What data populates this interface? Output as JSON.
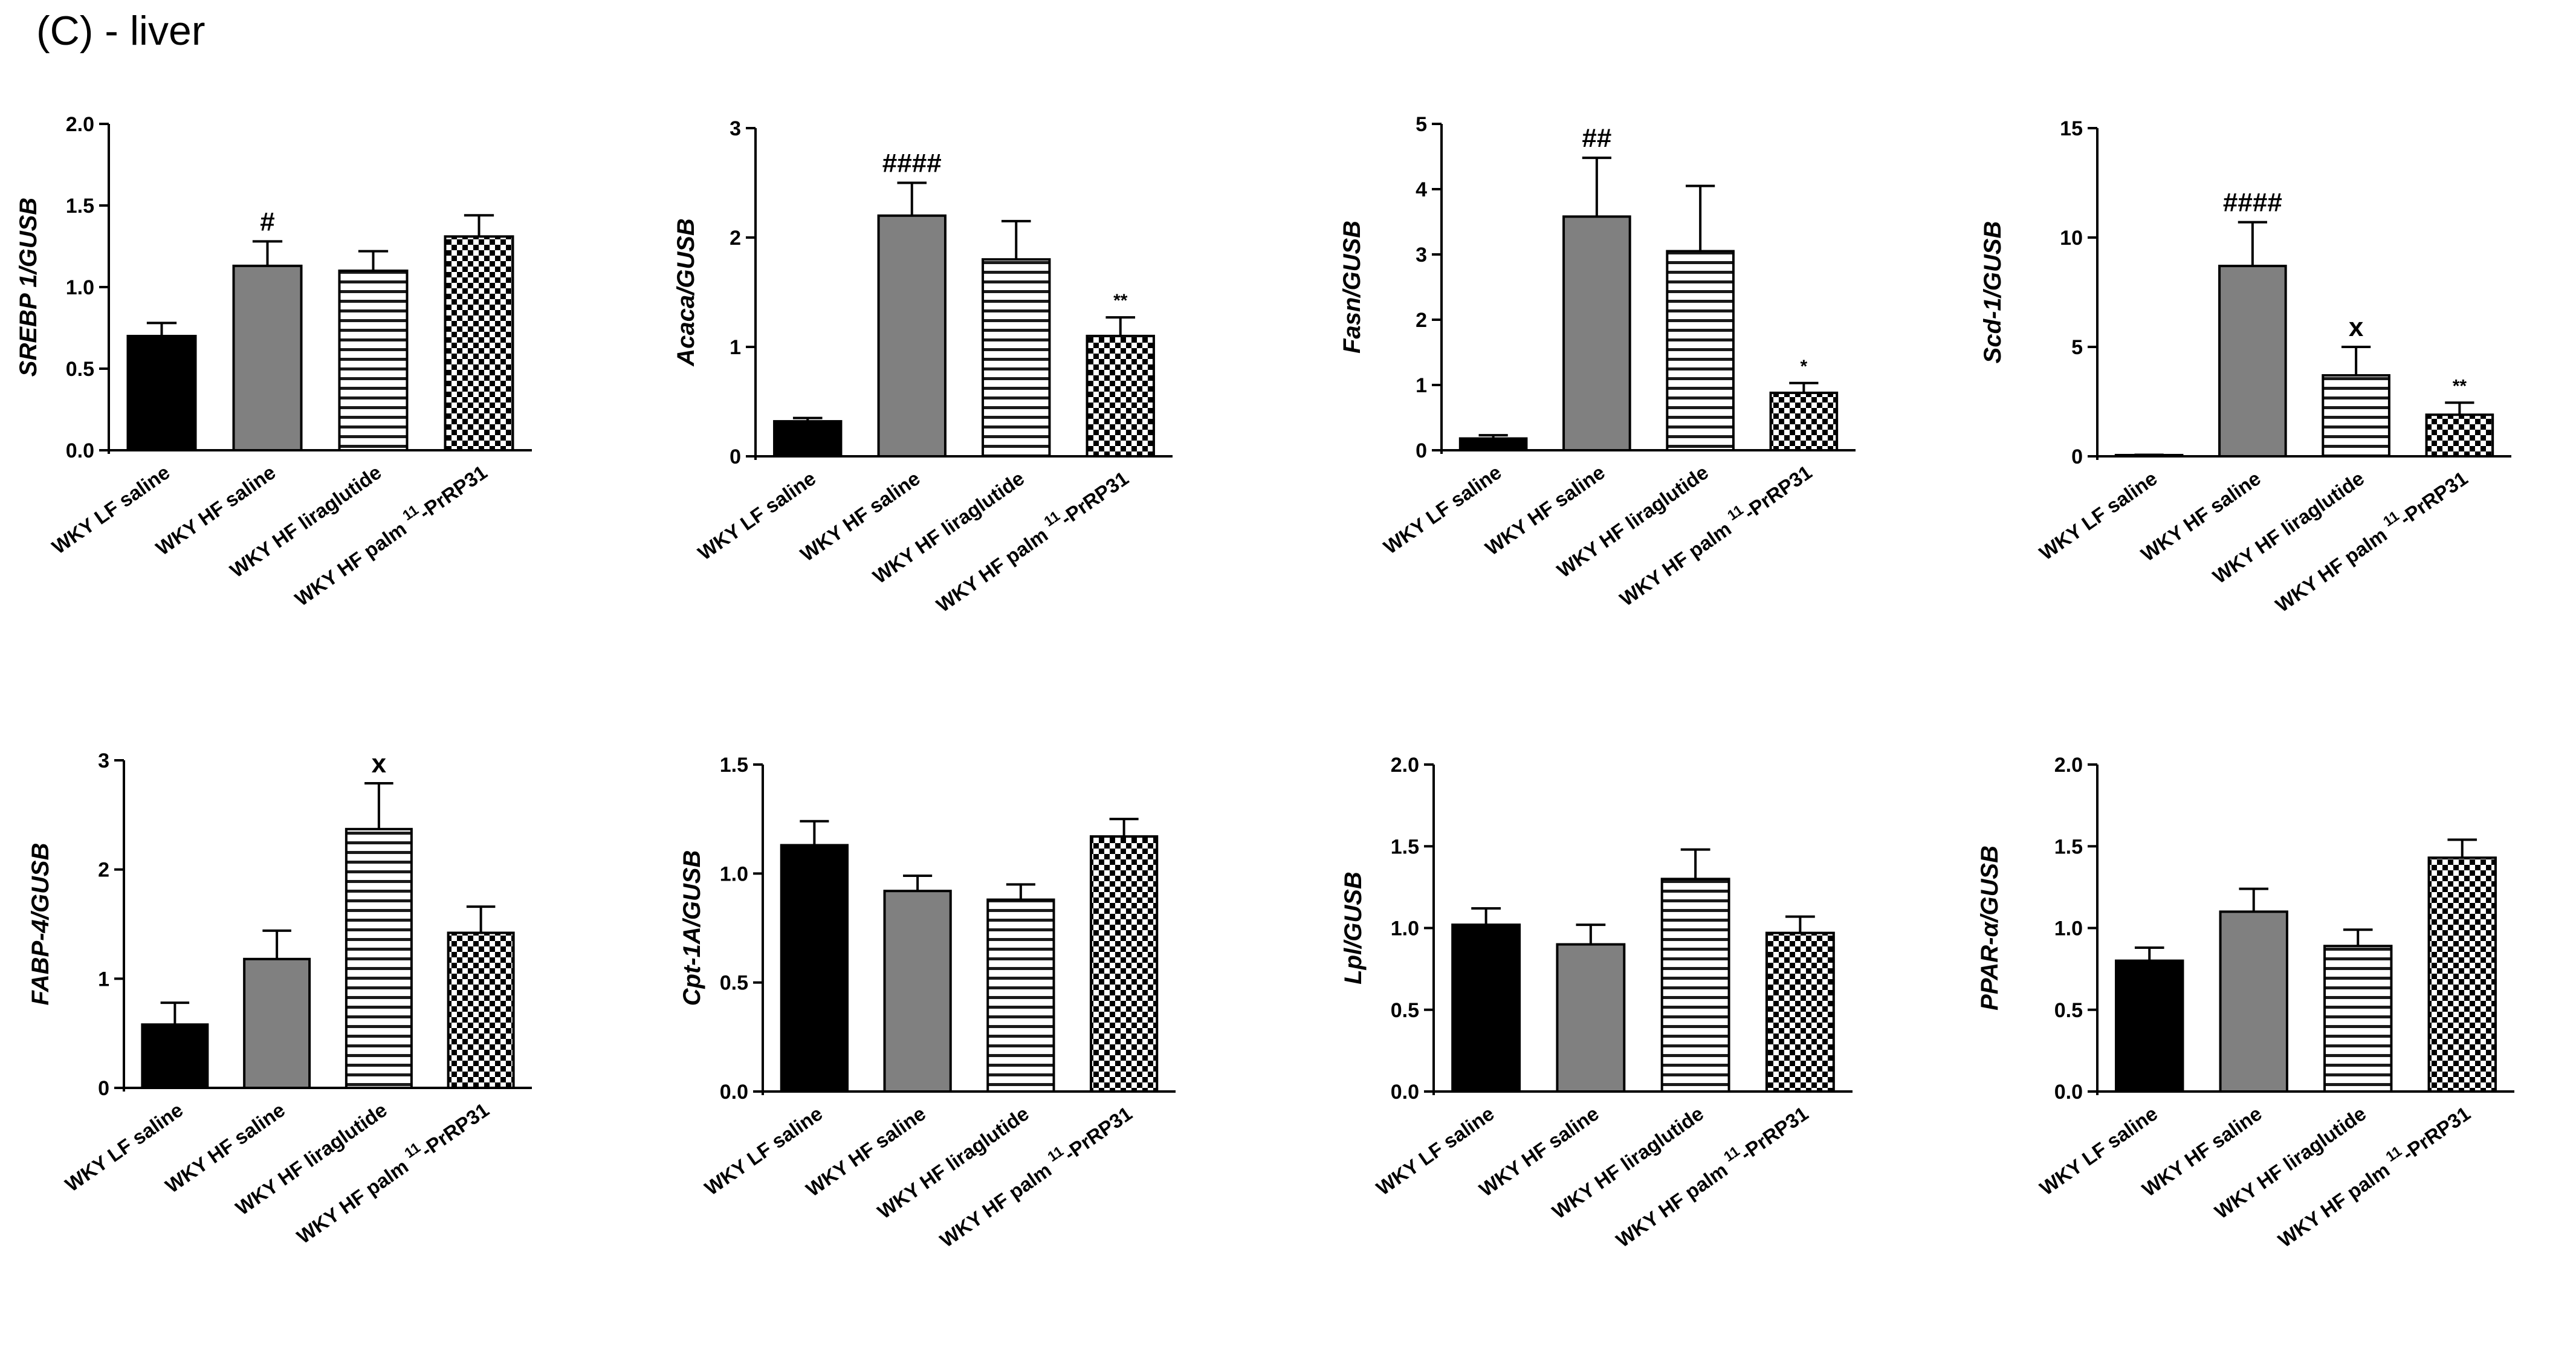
{
  "figure_title": "(C) - liver",
  "colors": {
    "lf_saline": "#000000",
    "hf_saline": "#808080",
    "axis": "#000000"
  },
  "fills": [
    "solid-black",
    "solid-gray",
    "horizontal-stripes",
    "checkerboard"
  ],
  "chart_data": [
    {
      "type": "bar",
      "title": "",
      "ylabel": "SREBP 1/GUSB",
      "xlabel": "",
      "categories": [
        "WKY LF saline",
        "WKY HF saline",
        "WKY HF liraglutide",
        "WKY HF palm11-PrRP31"
      ],
      "values": [
        0.7,
        1.13,
        1.1,
        1.31
      ],
      "errors": [
        0.08,
        0.15,
        0.12,
        0.13
      ],
      "annotations": [
        "",
        "#",
        "",
        ""
      ],
      "ylim": [
        0,
        2.0
      ],
      "yticks": [
        "0.0",
        "0.5",
        "1.0",
        "1.5",
        "2.0"
      ],
      "ytick_values": [
        0,
        0.5,
        1.0,
        1.5,
        2.0
      ]
    },
    {
      "type": "bar",
      "title": "",
      "ylabel": "Acaca/GUSB",
      "xlabel": "",
      "categories": [
        "WKY LF saline",
        "WKY HF saline",
        "WKY HF liraglutide",
        "WKY HF palm11-PrRP31"
      ],
      "values": [
        0.32,
        2.2,
        1.8,
        1.1
      ],
      "errors": [
        0.03,
        0.3,
        0.35,
        0.17
      ],
      "annotations": [
        "",
        "####",
        "",
        "**"
      ],
      "ylim": [
        0,
        3
      ],
      "yticks": [
        "0",
        "1",
        "2",
        "3"
      ],
      "ytick_values": [
        0,
        1,
        2,
        3
      ]
    },
    {
      "type": "bar",
      "title": "",
      "ylabel": "Fasn/GUSB",
      "xlabel": "",
      "categories": [
        "WKY LF saline",
        "WKY HF saline",
        "WKY HF liraglutide",
        "WKY HF palm11-PrRP31"
      ],
      "values": [
        0.18,
        3.58,
        3.05,
        0.88
      ],
      "errors": [
        0.05,
        0.9,
        1.0,
        0.15
      ],
      "annotations": [
        "",
        "##",
        "",
        "*"
      ],
      "ylim": [
        0,
        5
      ],
      "yticks": [
        "0",
        "1",
        "2",
        "3",
        "4",
        "5"
      ],
      "ytick_values": [
        0,
        1,
        2,
        3,
        4,
        5
      ]
    },
    {
      "type": "bar",
      "title": "",
      "ylabel": "Scd-1/GUSB",
      "xlabel": "",
      "categories": [
        "WKY LF saline",
        "WKY HF saline",
        "WKY HF liraglutide",
        "WKY HF palm11-PrRP31"
      ],
      "values": [
        0.05,
        8.7,
        3.7,
        1.9
      ],
      "errors": [
        0.02,
        2.0,
        1.3,
        0.55
      ],
      "annotations": [
        "",
        "####",
        "x",
        "**"
      ],
      "ylim": [
        0,
        15
      ],
      "yticks": [
        "0",
        "5",
        "10",
        "15"
      ],
      "ytick_values": [
        0,
        5,
        10,
        15
      ]
    },
    {
      "type": "bar",
      "title": "",
      "ylabel": "FABP-4/GUSB",
      "xlabel": "",
      "categories": [
        "WKY LF saline",
        "WKY HF saline",
        "WKY HF liraglutide",
        "WKY HF palm11-PrRP31"
      ],
      "values": [
        0.58,
        1.18,
        2.37,
        1.42
      ],
      "errors": [
        0.2,
        0.26,
        0.42,
        0.24
      ],
      "annotations": [
        "",
        "",
        "x",
        ""
      ],
      "ylim": [
        0,
        3
      ],
      "yticks": [
        "0",
        "1",
        "2",
        "3"
      ],
      "ytick_values": [
        0,
        1,
        2,
        3
      ]
    },
    {
      "type": "bar",
      "title": "",
      "ylabel": "Cpt-1A/GUSB",
      "xlabel": "",
      "categories": [
        "WKY LF saline",
        "WKY HF saline",
        "WKY HF liraglutide",
        "WKY HF palm11-PrRP31"
      ],
      "values": [
        1.13,
        0.92,
        0.88,
        1.17
      ],
      "errors": [
        0.11,
        0.07,
        0.07,
        0.08
      ],
      "annotations": [
        "",
        "",
        "",
        ""
      ],
      "ylim": [
        0,
        1.5
      ],
      "yticks": [
        "0.0",
        "0.5",
        "1.0",
        "1.5"
      ],
      "ytick_values": [
        0,
        0.5,
        1.0,
        1.5
      ]
    },
    {
      "type": "bar",
      "title": "",
      "ylabel": "Lpl/GUSB",
      "xlabel": "",
      "categories": [
        "WKY LF saline",
        "WKY HF saline",
        "WKY HF liraglutide",
        "WKY HF palm11-PrRP31"
      ],
      "values": [
        1.02,
        0.9,
        1.3,
        0.97
      ],
      "errors": [
        0.1,
        0.12,
        0.18,
        0.1
      ],
      "annotations": [
        "",
        "",
        "",
        ""
      ],
      "ylim": [
        0,
        2.0
      ],
      "yticks": [
        "0.0",
        "0.5",
        "1.0",
        "1.5",
        "2.0"
      ],
      "ytick_values": [
        0,
        0.5,
        1.0,
        1.5,
        2.0
      ]
    },
    {
      "type": "bar",
      "title": "",
      "ylabel": "PPAR-α/GUSB",
      "xlabel": "",
      "categories": [
        "WKY LF saline",
        "WKY HF saline",
        "WKY HF liraglutide",
        "WKY HF palm11-PrRP31"
      ],
      "values": [
        0.8,
        1.1,
        0.89,
        1.43
      ],
      "errors": [
        0.08,
        0.14,
        0.1,
        0.11
      ],
      "annotations": [
        "",
        "",
        "",
        ""
      ],
      "ylim": [
        0,
        2.0
      ],
      "yticks": [
        "0.0",
        "0.5",
        "1.0",
        "1.5",
        "2.0"
      ],
      "ytick_values": [
        0,
        0.5,
        1.0,
        1.5,
        2.0
      ]
    }
  ]
}
